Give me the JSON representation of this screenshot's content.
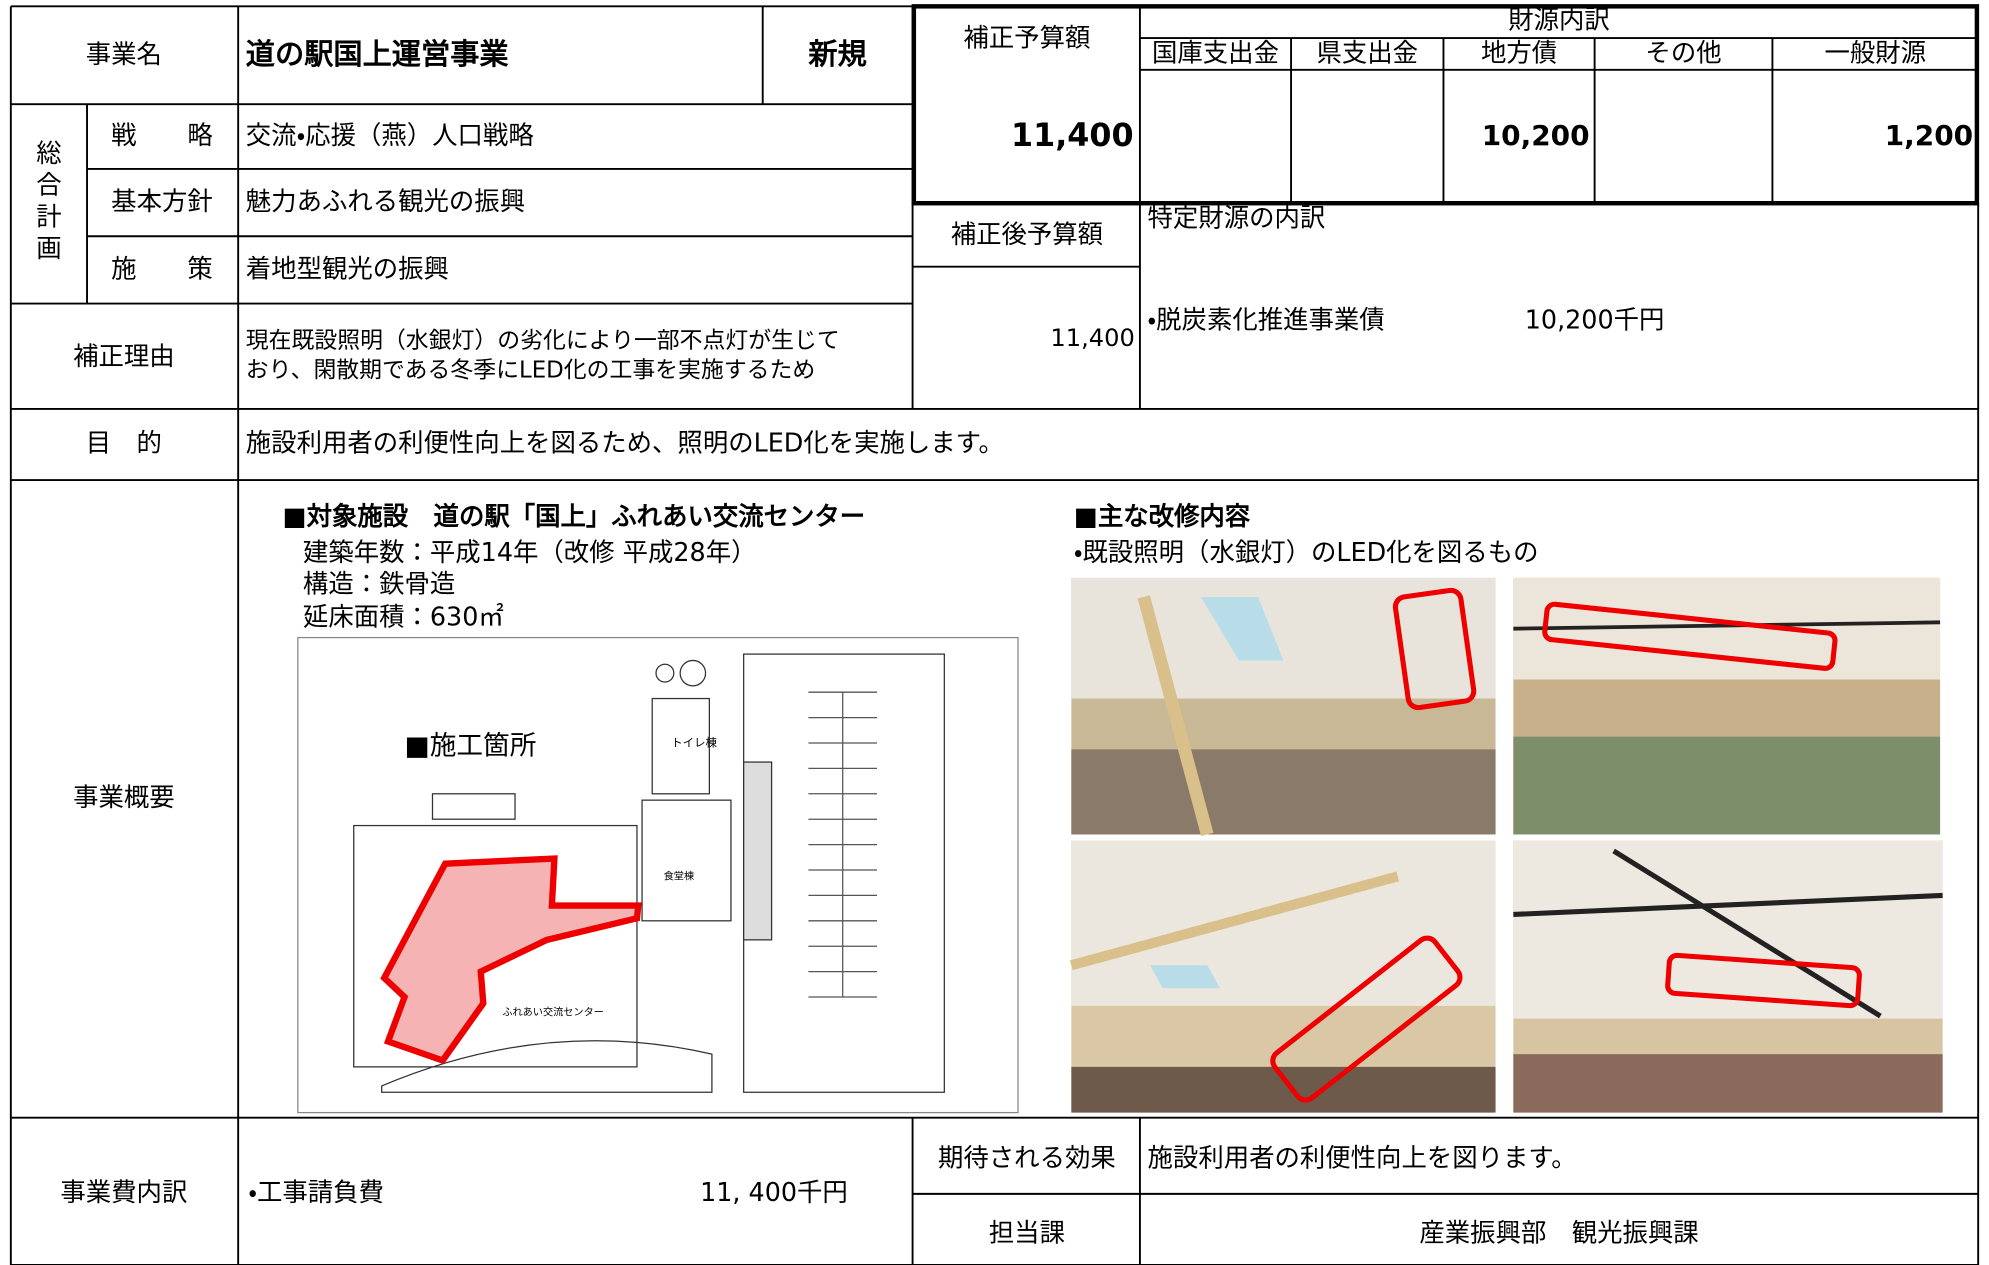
{
  "project": {
    "label": "事業名",
    "name": "道の駅国上運営事業",
    "status": "新規"
  },
  "plan": {
    "label": "総合計画",
    "rows": [
      {
        "label": "戦　　略",
        "value": "交流・応援（燕）人口戦略"
      },
      {
        "label": "基本方針",
        "value": "魅力あふれる観光の振興"
      },
      {
        "label": "施　　策",
        "value": "着地型観光の振興"
      }
    ]
  },
  "reason": {
    "label": "補正理由",
    "lines": [
      "現在既設照明（水銀灯）の劣化により一部不点灯が生じて",
      "おり、閑散期である冬季にLED化の工事を実施するため"
    ]
  },
  "budget": {
    "label": "補正予算額",
    "amount": "11,400",
    "sources_title": "財源内訳",
    "sources": [
      {
        "label": "国庫支出金"
      },
      {
        "label": "県支出金"
      },
      {
        "label": "地方債",
        "value": "10,200"
      },
      {
        "label": "その他"
      },
      {
        "label": "一般財源",
        "value": "1,200"
      }
    ]
  },
  "after_budget": {
    "label": "補正後予算額",
    "amount": "11,400"
  },
  "specific_sources": {
    "title": "特定財源の内訳",
    "item": "・脱炭素化推進事業債",
    "amount": "10,200千円"
  },
  "purpose": {
    "label": "目　的",
    "text": "施設利用者の利便性向上を図るため、照明のLED化を実施します。"
  },
  "overview": {
    "label": "事業概要",
    "facility_title": "■対象施設　道の駅「国上」ふれあい交流センター",
    "facility_lines": [
      "建築年数：平成14年（改修 平成28年）",
      "構造：鉄骨造",
      "延床面積：630㎡"
    ],
    "map_legend": "■施工箇所",
    "map_toilet": "トイレ棟",
    "map_food": "食堂棟",
    "map_caption": "ふれあい交流センター",
    "work_title": "■主な改修内容",
    "work_line": "・既設照明（水銀灯）のLED化を図るもの"
  },
  "cost": {
    "label": "事業費内訳",
    "item": "・工事請負費",
    "amount": "11, 400千円"
  },
  "effect": {
    "label": "期待される効果",
    "text": "施設利用者の利便性向上を図ります。"
  },
  "department": {
    "label": "担当課",
    "text": "産業振興部　観光振興課"
  }
}
